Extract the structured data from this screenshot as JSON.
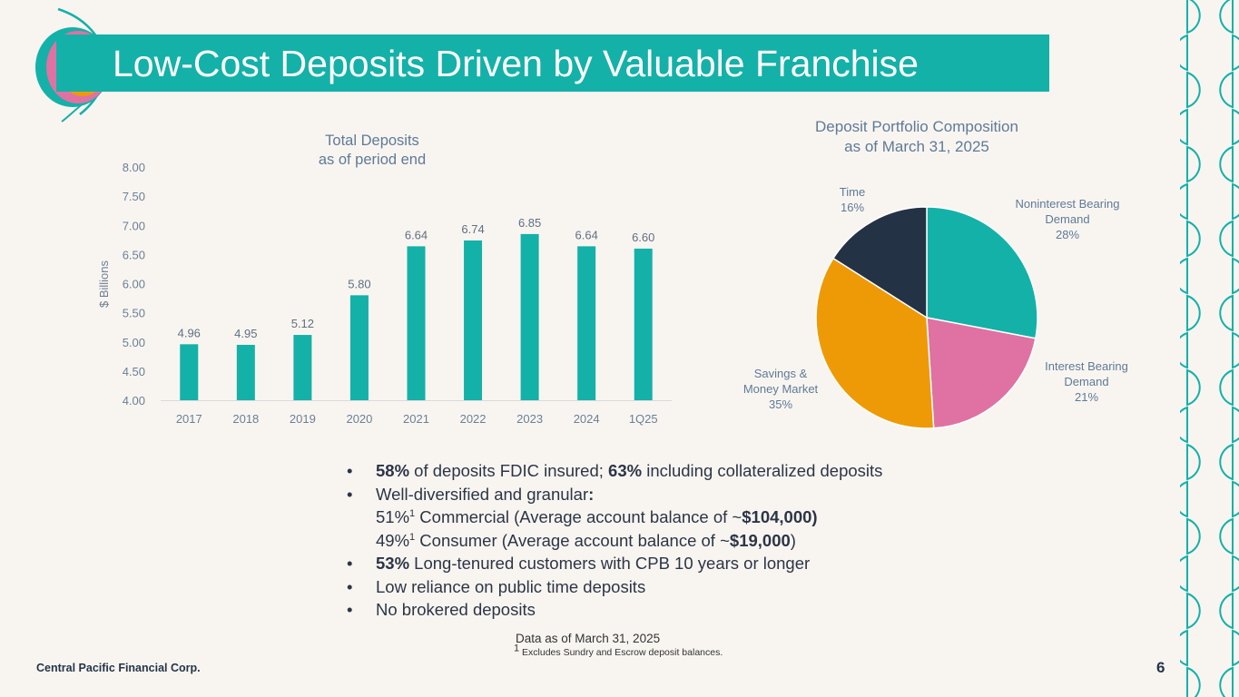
{
  "slide": {
    "title": "Low-Cost Deposits Driven by Valuable Franchise",
    "footer": "Central Pacific Financial Corp.",
    "page_number": "6",
    "note": "Data as of March 31, 2025",
    "footnote_mark": "1",
    "footnote_text": " Excludes Sundry and Escrow deposit balances."
  },
  "colors": {
    "teal": "#14b1a8",
    "pink": "#df72a2",
    "orange": "#ee9a07",
    "navy": "#233244",
    "background": "#f8f5f1"
  },
  "bullets": {
    "b1_val1": "58%",
    "b1_text1": " of deposits FDIC insured; ",
    "b1_val2": "63%",
    "b1_text2": " including collateralized deposits",
    "b2_text": "Well-diversified and granular",
    "b2_colon": ":",
    "b2_line1_val": "51%",
    "b2_line1_sup": "1",
    "b2_line1_text": " Commercial (Average account balance of ~",
    "b2_line1_amt": "$104,000)",
    "b2_line2_val": "49%",
    "b2_line2_sup": "1",
    "b2_line2_text": " Consumer (Average account balance of ~",
    "b2_line2_amt": "$19,000",
    "b2_line2_end": ")",
    "b3_val": "53%",
    "b3_text": " Long-tenured customers with CPB 10 years or longer",
    "b4_text": "Low reliance on public time deposits",
    "b5_text": "No brokered deposits"
  },
  "chart_data": [
    {
      "type": "bar",
      "title": [
        "Total Deposits",
        "as of period end"
      ],
      "ylabel": "$ Billions",
      "categories": [
        "2017",
        "2018",
        "2019",
        "2020",
        "2021",
        "2022",
        "2023",
        "2024",
        "1Q25"
      ],
      "values": [
        4.96,
        4.95,
        5.12,
        5.8,
        6.64,
        6.74,
        6.85,
        6.64,
        6.6
      ],
      "value_labels": [
        "4.96",
        "4.95",
        "5.12",
        "5.80",
        "6.64",
        "6.74",
        "6.85",
        "6.64",
        "6.60"
      ],
      "ylim": [
        4.0,
        8.0
      ],
      "yticks": [
        "4.00",
        "4.50",
        "5.00",
        "5.50",
        "6.00",
        "6.50",
        "7.00",
        "7.50",
        "8.00"
      ],
      "color": "#14b1a8",
      "grid": false
    },
    {
      "type": "pie",
      "title": [
        "Deposit Portfolio Composition",
        "as of March 31, 2025"
      ],
      "slices": [
        {
          "label": [
            "Noninterest Bearing",
            "Demand"
          ],
          "pct_label": "28%",
          "value": 28,
          "color": "#14b1a8"
        },
        {
          "label": [
            "Interest Bearing",
            "Demand"
          ],
          "pct_label": "21%",
          "value": 21,
          "color": "#df72a2"
        },
        {
          "label": [
            "Savings &",
            "Money Market"
          ],
          "pct_label": "35%",
          "value": 35,
          "color": "#ee9a07"
        },
        {
          "label": [
            "Time"
          ],
          "pct_label": "16%",
          "value": 16,
          "color": "#233244"
        }
      ]
    }
  ]
}
